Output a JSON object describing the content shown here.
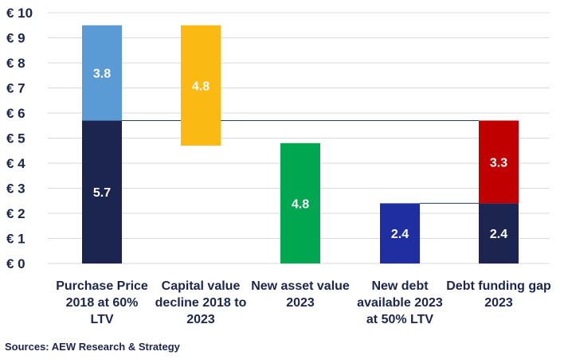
{
  "chart_data": {
    "type": "bar",
    "subtype": "waterfall",
    "categories": [
      [
        "Purchase Price",
        "2018 at 60%",
        "LTV"
      ],
      [
        "Capital value",
        "decline 2018 to",
        "2023"
      ],
      [
        "New asset value",
        "2023"
      ],
      [
        "New debt",
        "available 2023",
        "at 50% LTV"
      ],
      [
        "Debt funding gap",
        "2023"
      ]
    ],
    "segments": [
      {
        "category": 0,
        "base": 0,
        "value": 5.7,
        "label": "5.7",
        "color": "#1b2550"
      },
      {
        "category": 0,
        "base": 5.7,
        "value": 3.8,
        "label": "3.8",
        "color": "#5b9bd5"
      },
      {
        "category": 1,
        "base": 4.7,
        "value": 4.8,
        "label": "4.8",
        "color": "#fbb914"
      },
      {
        "category": 2,
        "base": 0,
        "value": 4.8,
        "label": "4.8",
        "color": "#00a650"
      },
      {
        "category": 3,
        "base": 0,
        "value": 2.4,
        "label": "2.4",
        "color": "#1f2ea0"
      },
      {
        "category": 4,
        "base": 0,
        "value": 2.4,
        "label": "2.4",
        "color": "#1b2550"
      },
      {
        "category": 4,
        "base": 2.4,
        "value": 3.3,
        "label": "3.3",
        "color": "#c00000"
      }
    ],
    "connectors": [
      {
        "from": 0,
        "to": 4,
        "value": 5.7
      },
      {
        "from": 3,
        "to": 4,
        "value": 2.4
      }
    ],
    "yticks": [
      "€ 0",
      "€ 1",
      "€ 2",
      "€ 3",
      "€ 4",
      "€ 5",
      "€ 6",
      "€ 7",
      "€ 8",
      "€ 9",
      "€ 10"
    ],
    "ylim": [
      0,
      10
    ],
    "grid": true,
    "colors": {
      "text": "#1b2550",
      "grid": "#d9d9d9",
      "connector": "#2e4057"
    }
  },
  "source_text": "Sources: AEW Research & Strategy"
}
